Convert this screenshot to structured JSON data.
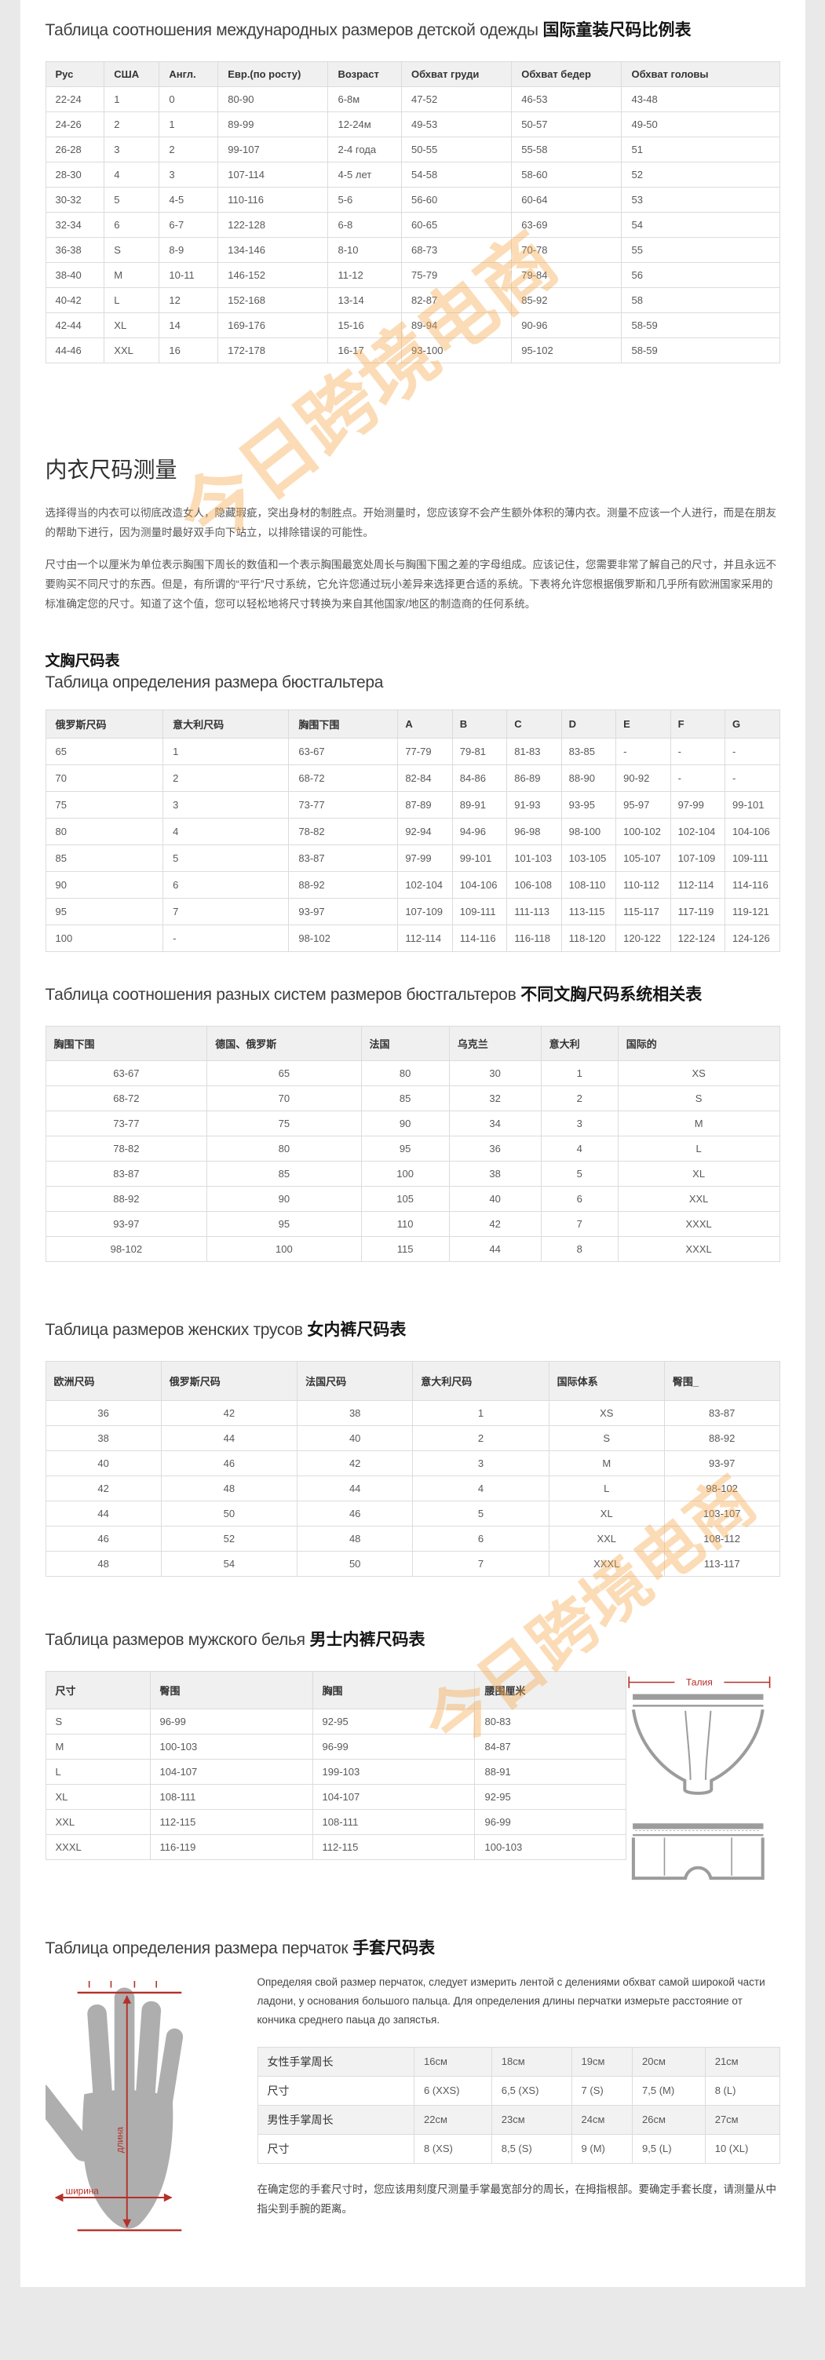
{
  "watermark": {
    "text": "今日跨境电商",
    "color": "#f6a848"
  },
  "sections": {
    "kids": {
      "title_ru": "Таблица соотношения международных размеров детской одежды",
      "title_zh": "国际童装尺码比例表",
      "headers": [
        "Рус",
        "США",
        "Англ.",
        "Евр.(по росту)",
        "Возраст",
        "Обхват груди",
        "Обхват бедер",
        "Обхват головы"
      ],
      "rows": [
        [
          "22-24",
          "1",
          "0",
          "80-90",
          "6-8м",
          "47-52",
          "46-53",
          "43-48"
        ],
        [
          "24-26",
          "2",
          "1",
          "89-99",
          "12-24м",
          "49-53",
          "50-57",
          "49-50"
        ],
        [
          "26-28",
          "3",
          "2",
          "99-107",
          "2-4 года",
          "50-55",
          "55-58",
          "51"
        ],
        [
          "28-30",
          "4",
          "3",
          "107-114",
          "4-5 лет",
          "54-58",
          "58-60",
          "52"
        ],
        [
          "30-32",
          "5",
          "4-5",
          "110-116",
          "5-6",
          "56-60",
          "60-64",
          "53"
        ],
        [
          "32-34",
          "6",
          "6-7",
          "122-128",
          "6-8",
          "60-65",
          "63-69",
          "54"
        ],
        [
          "36-38",
          "S",
          "8-9",
          "134-146",
          "8-10",
          "68-73",
          "70-78",
          "55"
        ],
        [
          "38-40",
          "M",
          "10-11",
          "146-152",
          "11-12",
          "75-79",
          "79-84",
          "56"
        ],
        [
          "40-42",
          "L",
          "12",
          "152-168",
          "13-14",
          "82-87",
          "85-92",
          "58"
        ],
        [
          "42-44",
          "XL",
          "14",
          "169-176",
          "15-16",
          "89-94",
          "90-96",
          "58-59"
        ],
        [
          "44-46",
          "XXL",
          "16",
          "172-178",
          "16-17",
          "93-100",
          "95-102",
          "58-59"
        ]
      ]
    },
    "measure": {
      "title": "内衣尺码测量",
      "p1": "选择得当的内衣可以彻底改造女人，隐藏瑕疵，突出身材的制胜点。开始测量时，您应该穿不会产生额外体积的薄内衣。测量不应该一个人进行，而是在朋友的帮助下进行，因为测量时最好双手向下站立，以排除错误的可能性。",
      "p2": "尺寸由一个以厘米为单位表示胸围下周长的数值和一个表示胸围最宽处周长与胸围下围之差的字母组成。应该记住，您需要非常了解自己的尺寸，并且永远不要购买不同尺寸的东西。但是，有所谓的“平行”尺寸系统，它允许您通过玩小差异来选择更合适的系统。下表将允许您根据俄罗斯和几乎所有欧洲国家采用的标准确定您的尺寸。知道了这个值，您可以轻松地将尺寸转换为来自其他国家/地区的制造商的任何系统。"
    },
    "bra": {
      "title_zh": "文胸尺码表",
      "title_ru": "Таблица определения размера бюстгальтера",
      "headers": [
        "俄罗斯尺码",
        "意大利尺码",
        "胸围下围",
        "A",
        "B",
        "C",
        "D",
        "E",
        "F",
        "G"
      ],
      "rows": [
        [
          "65",
          "1",
          "63-67",
          "77-79",
          "79-81",
          "81-83",
          "83-85",
          "-",
          "-",
          "-"
        ],
        [
          "70",
          "2",
          "68-72",
          "82-84",
          "84-86",
          "86-89",
          "88-90",
          "90-92",
          "-",
          "-"
        ],
        [
          "75",
          "3",
          "73-77",
          "87-89",
          "89-91",
          "91-93",
          "93-95",
          "95-97",
          "97-99",
          "99-101"
        ],
        [
          "80",
          "4",
          "78-82",
          "92-94",
          "94-96",
          "96-98",
          "98-100",
          "100-102",
          "102-104",
          "104-106"
        ],
        [
          "85",
          "5",
          "83-87",
          "97-99",
          "99-101",
          "101-103",
          "103-105",
          "105-107",
          "107-109",
          "109-111"
        ],
        [
          "90",
          "6",
          "88-92",
          "102-104",
          "104-106",
          "106-108",
          "108-110",
          "110-112",
          "112-114",
          "114-116"
        ],
        [
          "95",
          "7",
          "93-97",
          "107-109",
          "109-111",
          "111-113",
          "113-115",
          "115-117",
          "117-119",
          "119-121"
        ],
        [
          "100",
          "-",
          "98-102",
          "112-114",
          "114-116",
          "116-118",
          "118-120",
          "120-122",
          "122-124",
          "124-126"
        ]
      ]
    },
    "bra_systems": {
      "title_ru": "Таблица соотношения разных систем размеров бюстгальтеров",
      "title_zh": "不同文胸尺码系统相关表",
      "headers": [
        "胸围下围",
        "德国、俄罗斯",
        "法国",
        "乌克兰",
        "意大利",
        "国际的"
      ],
      "rows": [
        [
          "63-67",
          "65",
          "80",
          "30",
          "1",
          "XS"
        ],
        [
          "68-72",
          "70",
          "85",
          "32",
          "2",
          "S"
        ],
        [
          "73-77",
          "75",
          "90",
          "34",
          "3",
          "M"
        ],
        [
          "78-82",
          "80",
          "95",
          "36",
          "4",
          "L"
        ],
        [
          "83-87",
          "85",
          "100",
          "38",
          "5",
          "XL"
        ],
        [
          "88-92",
          "90",
          "105",
          "40",
          "6",
          "XXL"
        ],
        [
          "93-97",
          "95",
          "110",
          "42",
          "7",
          "XXXL"
        ],
        [
          "98-102",
          "100",
          "115",
          "44",
          "8",
          "XXXL"
        ]
      ]
    },
    "panties": {
      "title_ru": "Таблица размеров женских трусов",
      "title_zh": "女内裤尺码表",
      "headers": [
        "欧洲尺码",
        "俄罗斯尺码",
        "法国尺码",
        "意大利尺码",
        "国际体系",
        "臀围_"
      ],
      "rows": [
        [
          "36",
          "42",
          "38",
          "1",
          "XS",
          "83-87"
        ],
        [
          "38",
          "44",
          "40",
          "2",
          "S",
          "88-92"
        ],
        [
          "40",
          "46",
          "42",
          "3",
          "M",
          "93-97"
        ],
        [
          "42",
          "48",
          "44",
          "4",
          "L",
          "98-102"
        ],
        [
          "44",
          "50",
          "46",
          "5",
          "XL",
          "103-107"
        ],
        [
          "46",
          "52",
          "48",
          "6",
          "XXL",
          "108-112"
        ],
        [
          "48",
          "54",
          "50",
          "7",
          "XXXL",
          "113-117"
        ]
      ]
    },
    "mens": {
      "title_ru": "Таблица размеров мужского белья",
      "title_zh": "男士内裤尺码表",
      "headers": [
        "尺寸",
        "臀围",
        "胸围",
        "腰围厘米"
      ],
      "rows": [
        [
          "S",
          "96-99",
          "92-95",
          "80-83"
        ],
        [
          "M",
          "100-103",
          "96-99",
          "84-87"
        ],
        [
          "L",
          "104-107",
          "199-103",
          "88-91"
        ],
        [
          "XL",
          "108-111",
          "104-107",
          "92-95"
        ],
        [
          "XXL",
          "112-115",
          "108-111",
          "96-99"
        ],
        [
          "XXXL",
          "116-119",
          "112-115",
          "100-103"
        ]
      ],
      "diagram_label": "Талия"
    },
    "gloves": {
      "title_ru": "Таблица определения размера перчаток",
      "title_zh": "手套尺码表",
      "intro": "Определяя свой размер перчаток, следует измерить лентой с делениями обхват самой широкой части ладони, у основания большого пальца. Для определения длины перчатки измерьте расстояние от кончика среднего паьца до запястья.",
      "rows": [
        {
          "label": "女性手掌周长",
          "values": [
            "16см",
            "18см",
            "19см",
            "20см",
            "21см"
          ]
        },
        {
          "label": "尺寸",
          "values": [
            "6 (XXS)",
            "6,5 (XS)",
            "7 (S)",
            "7,5 (M)",
            "8 (L)"
          ]
        },
        {
          "label": "男性手掌周长",
          "values": [
            "22см",
            "23см",
            "24см",
            "26см",
            "27см"
          ]
        },
        {
          "label": "尺寸",
          "values": [
            "8 (XS)",
            "8,5 (S)",
            "9 (M)",
            "9,5 (L)",
            "10 (XL)"
          ]
        }
      ],
      "outro": "在确定您的手套尺寸时，您应该用刻度尺测量手掌最宽部分的周长，在拇指根部。要确定手套长度，请测量从中指尖到手腕的距离。",
      "hand_labels": {
        "length": "длина",
        "width": "ширина"
      }
    }
  }
}
